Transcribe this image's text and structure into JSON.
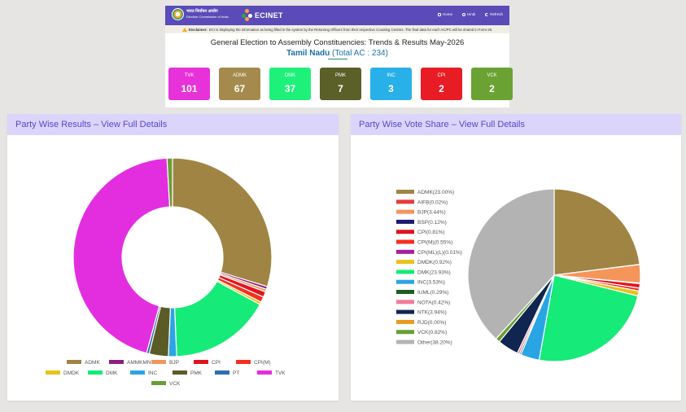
{
  "navbar": {
    "eci_line1": "भारत निर्वाचन आयोग",
    "eci_line2": "Election Commission of India",
    "ecinet_label": "ECINET",
    "links": [
      {
        "label": "Home",
        "icon": "home-icon"
      },
      {
        "label": "Hindi",
        "icon": "language-icon"
      },
      {
        "label": "Refresh",
        "icon": "refresh-icon"
      }
    ]
  },
  "disclaimer": {
    "label": "Disclaimer:",
    "text": "ECI is displaying the information as being filled in the system by the Returning Officers from their respective Counting Centres. The final data for each AC/PC will be shared in Form-20."
  },
  "header": {
    "title": "General Election to Assembly Constituencies: Trends & Results May-2026",
    "state": "Tamil Nadu",
    "total": "(Total AC : 234)"
  },
  "tiles": [
    {
      "name": "TVK",
      "value": "101",
      "color": "#e731d9"
    },
    {
      "name": "ADMK",
      "value": "67",
      "color": "#a48a4c"
    },
    {
      "name": "DMK",
      "value": "37",
      "color": "#1ef17a"
    },
    {
      "name": "PMK",
      "value": "7",
      "color": "#5b5f28"
    },
    {
      "name": "INC",
      "value": "3",
      "color": "#29b0e8"
    },
    {
      "name": "CPI",
      "value": "2",
      "color": "#e81c24"
    },
    {
      "name": "VCK",
      "value": "2",
      "color": "#6aa233"
    }
  ],
  "panels": {
    "left_title": "Party Wise Results – View Full Details",
    "right_title": "Party Wise Vote Share – View Full Details"
  },
  "chart_data": [
    {
      "type": "pie",
      "variant": "donut",
      "title": "",
      "legend_position": "bottom",
      "series": [
        {
          "name": "ADMK",
          "value": 67,
          "color": "#a08443"
        },
        {
          "name": "AMMKMNKZ",
          "value": 1,
          "color": "#8b2080"
        },
        {
          "name": "BJP",
          "value": 1,
          "color": "#f5955a"
        },
        {
          "name": "CPI",
          "value": 2,
          "color": "#e0141e"
        },
        {
          "name": "CPI(M)",
          "value": 2,
          "color": "#f52f1e"
        },
        {
          "name": "DMDK",
          "value": 1,
          "color": "#e8c21a"
        },
        {
          "name": "DMK",
          "value": 37,
          "color": "#16ea78"
        },
        {
          "name": "INC",
          "value": 3,
          "color": "#2aa5e4"
        },
        {
          "name": "PMK",
          "value": 7,
          "color": "#5a5b27"
        },
        {
          "name": "PT",
          "value": 1,
          "color": "#2e6fb2"
        },
        {
          "name": "TVK",
          "value": 101,
          "color": "#e32ee0"
        },
        {
          "name": "VCK",
          "value": 2,
          "color": "#6a9e35"
        }
      ]
    },
    {
      "type": "pie",
      "title": "",
      "legend_position": "left",
      "series": [
        {
          "name": "ADMK",
          "label": "ADMK(23.00%)",
          "value": 23.0,
          "color": "#a08443"
        },
        {
          "name": "AIFB",
          "label": "AIFB(0.02%)",
          "value": 0.02,
          "color": "#e83a3a"
        },
        {
          "name": "BJP",
          "label": "BJP(3.44%)",
          "value": 3.44,
          "color": "#f5955a"
        },
        {
          "name": "BSP",
          "label": "BSP(0.12%)",
          "value": 0.12,
          "color": "#1a1a6e"
        },
        {
          "name": "CPI",
          "label": "CPI(0.81%)",
          "value": 0.81,
          "color": "#e0141e"
        },
        {
          "name": "CPI(M)",
          "label": "CPI(M)(0.55%)",
          "value": 0.55,
          "color": "#f52f1e"
        },
        {
          "name": "CPI(ML)(L)",
          "label": "CPI(ML)(L)(0.01%)",
          "value": 0.01,
          "color": "#a61fa0"
        },
        {
          "name": "DMDK",
          "label": "DMDK(0.92%)",
          "value": 0.92,
          "color": "#e8c21a"
        },
        {
          "name": "DMK",
          "label": "DMK(23.93%)",
          "value": 23.93,
          "color": "#16ea78"
        },
        {
          "name": "INC",
          "label": "INC(3.53%)",
          "value": 3.53,
          "color": "#2aa5e4"
        },
        {
          "name": "IUML",
          "label": "IUML(0.29%)",
          "value": 0.29,
          "color": "#1b5e20"
        },
        {
          "name": "NOTA",
          "label": "NOTA(0.42%)",
          "value": 0.42,
          "color": "#f27a9a"
        },
        {
          "name": "NTK",
          "label": "NTK(3.94%)",
          "value": 3.94,
          "color": "#10254f"
        },
        {
          "name": "RJD",
          "label": "RJD(0.00%)",
          "value": 0.0,
          "color": "#e89a1a"
        },
        {
          "name": "VCK",
          "label": "VCK(0.82%)",
          "value": 0.82,
          "color": "#6a9e35"
        },
        {
          "name": "Other",
          "label": "Other(38.20%)",
          "value": 38.2,
          "color": "#b3b3b3"
        }
      ]
    }
  ]
}
